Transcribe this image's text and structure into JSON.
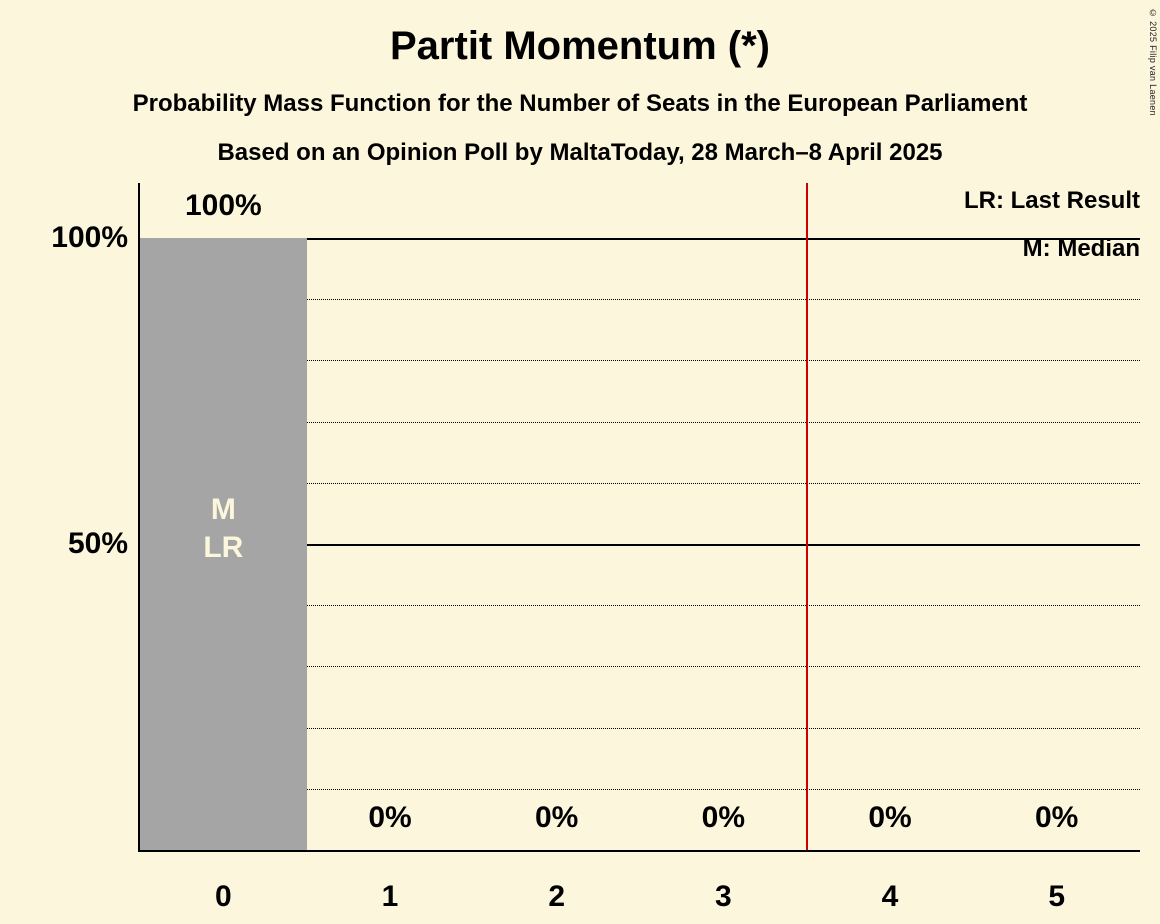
{
  "title": "Partit Momentum (*)",
  "subtitle1": "Probability Mass Function for the Number of Seats in the European Parliament",
  "subtitle2": "Based on an Opinion Poll by MaltaToday, 28 March–8 April 2025",
  "legend": {
    "last_result": "LR: Last Result",
    "median": "M: Median"
  },
  "copyright": "© 2025 Filip van Laenen",
  "colors": {
    "background": "#FBF6DC",
    "bar": "#A5A5A5",
    "vertical_line": "#CC0000",
    "text": "#000000",
    "bar_annotation_text": "#FBF6DC"
  },
  "chart_data": {
    "type": "bar",
    "categories": [
      "0",
      "1",
      "2",
      "3",
      "4",
      "5"
    ],
    "values": [
      100,
      0,
      0,
      0,
      0,
      0
    ],
    "value_labels": [
      "100%",
      "0%",
      "0%",
      "0%",
      "0%",
      "0%"
    ],
    "xlabel": "",
    "ylabel": "",
    "ylim": [
      0,
      109
    ],
    "y_ticks": [
      {
        "value": 50,
        "label": "50%"
      },
      {
        "value": 100,
        "label": "100%"
      }
    ],
    "solid_gridlines": [
      50,
      100
    ],
    "dotted_gridlines": [
      10,
      20,
      30,
      40,
      60,
      70,
      80,
      90
    ],
    "bar_annotations": [
      {
        "category": "0",
        "lines": [
          "M",
          "LR"
        ]
      }
    ],
    "vertical_line_x": 3.5,
    "legend_position": "top-right",
    "grid": "horizontal-only"
  }
}
